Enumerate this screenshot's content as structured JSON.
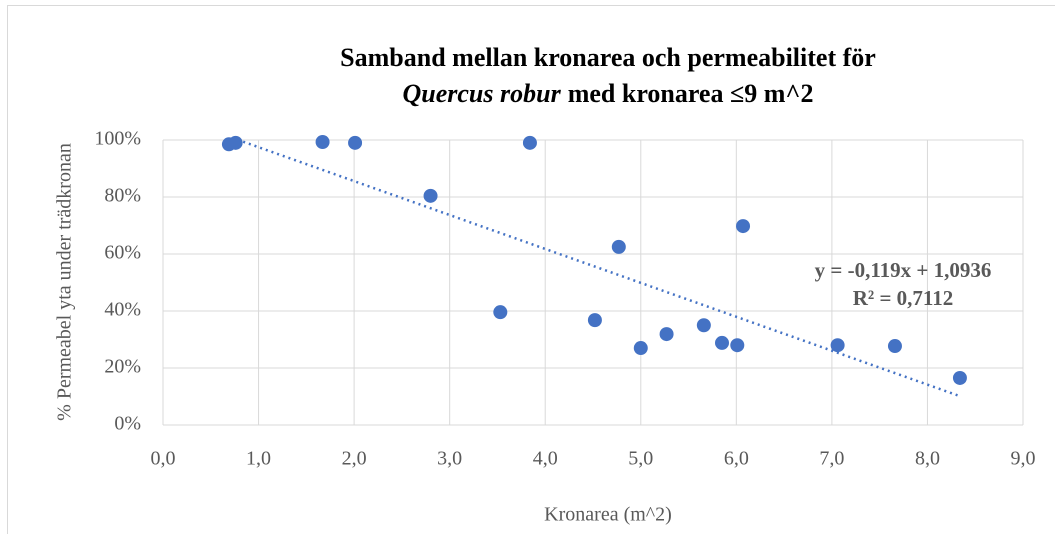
{
  "chart_data": {
    "type": "scatter",
    "title": [
      "Samband mellan kronarea och permeabilitet för",
      "Quercus robur",
      "med kronarea ≤9 m^2"
    ],
    "x_label": "Kronarea (m^2)",
    "y_label": "% Permeabel yta under trädkronan",
    "annotations": [
      "y = -0,119x + 1,0936",
      "R² = 0,7112"
    ],
    "series": [
      {
        "color": "#4472c4",
        "x": [
          0.69,
          0.76,
          1.67,
          2.01,
          2.8,
          3.84,
          3.53,
          4.52,
          4.77,
          5.0,
          5.27,
          5.66,
          5.85,
          6.01,
          6.07,
          7.06,
          7.66,
          8.34
        ],
        "values": [
          98.5,
          99,
          99.3,
          99,
          80.4,
          99,
          39.6,
          36.8,
          62.5,
          27,
          31.9,
          35,
          28.8,
          28,
          69.8,
          28,
          27.7,
          16.5
        ]
      }
    ],
    "trendline": {
      "color": "#4472c4",
      "x": [
        0.78,
        8.35
      ],
      "values": [
        100.1,
        10.0
      ]
    },
    "xlim": [
      0,
      9
    ],
    "xticks": [
      {
        "value": 0,
        "label": "0,0"
      },
      {
        "value": 1,
        "label": "1,0"
      },
      {
        "value": 2,
        "label": "2,0"
      },
      {
        "value": 3,
        "label": "3,0"
      },
      {
        "value": 4,
        "label": "4,0"
      },
      {
        "value": 5,
        "label": "5,0"
      },
      {
        "value": 6,
        "label": "6,0"
      },
      {
        "value": 7,
        "label": "7,0"
      },
      {
        "value": 8,
        "label": "8,0"
      },
      {
        "value": 9,
        "label": "9,0"
      }
    ],
    "ylim": [
      0,
      100
    ],
    "yticks": [
      {
        "value": 0,
        "label": "0%"
      },
      {
        "value": 20,
        "label": "20%"
      },
      {
        "value": 40,
        "label": "40%"
      },
      {
        "value": 60,
        "label": "60%"
      },
      {
        "value": 80,
        "label": "80%"
      },
      {
        "value": 100,
        "label": "100%"
      }
    ],
    "grid": true
  }
}
